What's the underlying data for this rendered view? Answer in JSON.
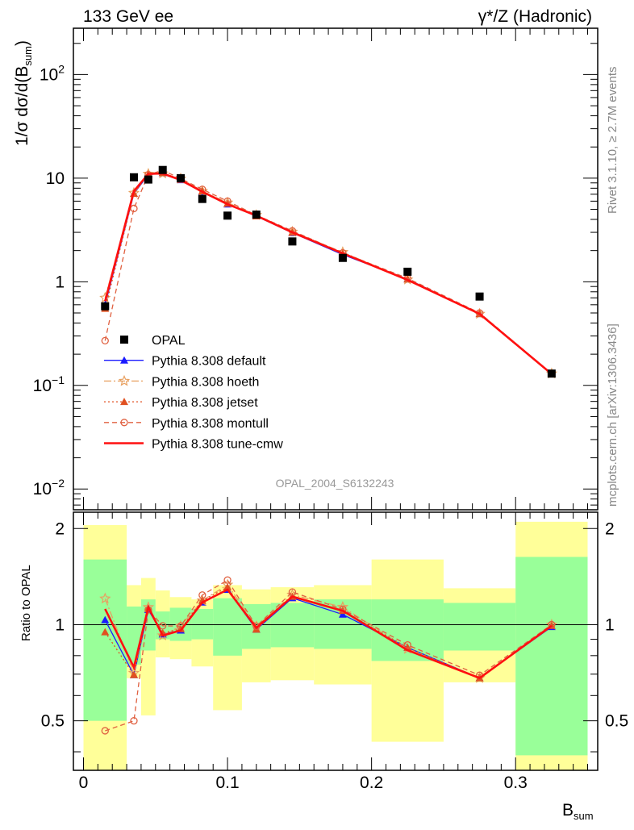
{
  "header": {
    "left": "133 GeV ee",
    "right": "γ*/Z (Hadronic)"
  },
  "side": {
    "rivet": "Rivet 3.1.10, ≥ 2.7M events",
    "mcplots": "mcplots.cern.ch [arXiv:1306.3436]"
  },
  "watermark": "OPAL_2004_S6132243",
  "axes": {
    "ylabel_main": "1/σ dσ/d(B",
    "ylabel_main_sub": "sum",
    "ylabel_main_end": ")",
    "ylabel_ratio": "Ratio to OPAL",
    "xlabel": "B",
    "xlabel_sub": "sum",
    "main_yticks": [
      {
        "v": 0.01,
        "base": "10",
        "exp": "−2"
      },
      {
        "v": 0.1,
        "base": "10",
        "exp": "−1"
      },
      {
        "v": 1,
        "base": "1",
        "exp": ""
      },
      {
        "v": 10,
        "base": "10",
        "exp": ""
      },
      {
        "v": 100,
        "base": "10",
        "exp": "2"
      }
    ],
    "ratio_yticks": [
      {
        "v": 0.5,
        "label": "0.5"
      },
      {
        "v": 1,
        "label": "1"
      },
      {
        "v": 2,
        "label": "2"
      }
    ],
    "xticks": [
      {
        "v": 0,
        "label": "0"
      },
      {
        "v": 0.1,
        "label": "0.1"
      },
      {
        "v": 0.2,
        "label": "0.2"
      },
      {
        "v": 0.3,
        "label": "0.3"
      }
    ]
  },
  "chart_data": {
    "type": "scatter",
    "x_range": [
      -0.007,
      0.357
    ],
    "y_range_main": [
      0.0063,
      280
    ],
    "y_scale_main": "log",
    "y_range_ratio": [
      0.35,
      2.25
    ],
    "y_scale_ratio": "log",
    "legend_position": "bottom-left",
    "bins": [
      {
        "lo": 0.0,
        "hi": 0.03
      },
      {
        "lo": 0.03,
        "hi": 0.04
      },
      {
        "lo": 0.04,
        "hi": 0.05
      },
      {
        "lo": 0.05,
        "hi": 0.06
      },
      {
        "lo": 0.06,
        "hi": 0.075
      },
      {
        "lo": 0.075,
        "hi": 0.09
      },
      {
        "lo": 0.09,
        "hi": 0.11
      },
      {
        "lo": 0.11,
        "hi": 0.13
      },
      {
        "lo": 0.13,
        "hi": 0.16
      },
      {
        "lo": 0.16,
        "hi": 0.2
      },
      {
        "lo": 0.2,
        "hi": 0.25
      },
      {
        "lo": 0.25,
        "hi": 0.3
      },
      {
        "lo": 0.3,
        "hi": 0.35
      }
    ],
    "x": [
      0.015,
      0.035,
      0.045,
      0.055,
      0.0675,
      0.0825,
      0.1,
      0.12,
      0.145,
      0.18,
      0.225,
      0.275,
      0.325
    ],
    "opal": [
      0.58,
      10.2,
      9.7,
      12.0,
      10.0,
      6.3,
      4.35,
      4.45,
      2.45,
      1.7,
      1.25,
      0.72,
      0.13
    ],
    "series": [
      {
        "name": "Pythia 8.308 default",
        "color": "#1a1aff",
        "dash": "",
        "marker": "triangle",
        "values": [
          0.6,
          7.1,
          10.8,
          11.2,
          9.6,
          7.4,
          5.6,
          4.3,
          2.97,
          1.83,
          1.06,
          0.49,
          0.128
        ]
      },
      {
        "name": "Pythia 8.308 hoeth",
        "color": "#e8a060",
        "dash": "9,3,2,3",
        "marker": "star",
        "values": [
          0.7,
          7.2,
          11.0,
          11.1,
          9.9,
          7.5,
          5.8,
          4.4,
          3.04,
          1.93,
          1.05,
          0.49,
          0.13
        ]
      },
      {
        "name": "Pythia 8.308 jetset",
        "color": "#e05020",
        "dash": "2,3",
        "marker": "triangle",
        "values": [
          0.55,
          7.1,
          10.9,
          11.3,
          9.7,
          7.5,
          5.7,
          4.3,
          3.0,
          1.88,
          1.06,
          0.49,
          0.129
        ]
      },
      {
        "name": "Pythia 8.308 montull",
        "color": "#e06040",
        "dash": "6,4",
        "marker": "circle",
        "values": [
          0.27,
          5.1,
          10.8,
          11.9,
          9.9,
          7.8,
          6.0,
          4.4,
          3.1,
          1.9,
          1.08,
          0.5,
          0.13
        ]
      },
      {
        "name": "Pythia 8.308 tune-cmw",
        "color": "#ff1010",
        "dash": "",
        "marker": "none",
        "values": [
          0.65,
          7.5,
          11.0,
          11.1,
          9.6,
          7.4,
          5.6,
          4.35,
          3.0,
          1.88,
          1.04,
          0.49,
          0.129
        ]
      }
    ],
    "ratio_band_green": [
      [
        0.5,
        1.6
      ],
      [
        0.75,
        1.14
      ],
      [
        0.83,
        1.2
      ],
      [
        0.9,
        1.1
      ],
      [
        0.89,
        1.13
      ],
      [
        0.9,
        1.12
      ],
      [
        0.8,
        1.21
      ],
      [
        0.84,
        1.16
      ],
      [
        0.85,
        1.17
      ],
      [
        0.84,
        1.2
      ],
      [
        0.77,
        1.2
      ],
      [
        0.83,
        1.17
      ],
      [
        0.39,
        1.63
      ]
    ],
    "ratio_band_yellow": [
      [
        0.35,
        2.05
      ],
      [
        0.68,
        1.33
      ],
      [
        0.52,
        1.4
      ],
      [
        0.79,
        1.28
      ],
      [
        0.78,
        1.22
      ],
      [
        0.74,
        1.2
      ],
      [
        0.54,
        1.33
      ],
      [
        0.66,
        1.29
      ],
      [
        0.67,
        1.31
      ],
      [
        0.65,
        1.33
      ],
      [
        0.43,
        1.6
      ],
      [
        0.66,
        1.3
      ],
      [
        0.35,
        2.1
      ]
    ]
  }
}
